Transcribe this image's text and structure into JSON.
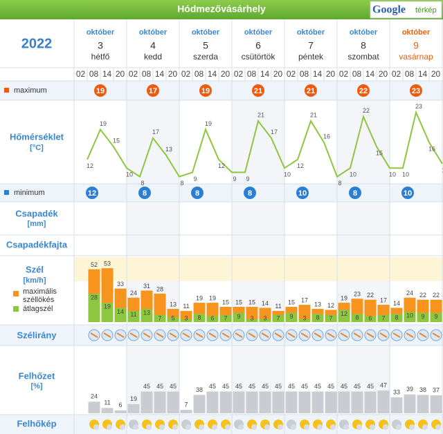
{
  "header": {
    "title": "Hódmezővásárhely",
    "logo": "Google",
    "logo_sub": "térkép",
    "year": "2022"
  },
  "days": [
    {
      "month": "október",
      "day": "3",
      "weekday": "hétfő"
    },
    {
      "month": "október",
      "day": "4",
      "weekday": "kedd"
    },
    {
      "month": "október",
      "day": "5",
      "weekday": "szerda"
    },
    {
      "month": "október",
      "day": "6",
      "weekday": "csütörtök"
    },
    {
      "month": "október",
      "day": "7",
      "weekday": "péntek"
    },
    {
      "month": "október",
      "day": "8",
      "weekday": "szombat"
    },
    {
      "month": "október",
      "day": "9",
      "weekday": "vasárnap"
    }
  ],
  "hours": [
    "02",
    "08",
    "14",
    "20"
  ],
  "labels": {
    "maximum": "maximum",
    "temperature": "Hőmérséklet",
    "temperature_unit": "[°C]",
    "minimum": "minimum",
    "precip": "Csapadék",
    "precip_unit": "[mm]",
    "precip_type": "Csapadékfajta",
    "wind": "Szél",
    "wind_unit": "[km/h]",
    "gust": "maximális széllökés",
    "avg_wind": "átlagszél",
    "wind_dir": "Szélirány",
    "cloud": "Felhőzet",
    "cloud_unit": "[%]",
    "cloud_img": "Felhőkép"
  },
  "max": [
    19,
    17,
    19,
    21,
    21,
    22,
    23
  ],
  "min": [
    12,
    8,
    8,
    8,
    10,
    8,
    10
  ],
  "temperature": {
    "values": [
      12,
      19,
      15,
      10,
      8,
      17,
      13,
      8,
      9,
      19,
      12,
      9,
      9,
      21,
      17,
      10,
      12,
      21,
      16,
      8,
      10,
      22,
      15,
      10,
      10,
      23,
      16,
      11
    ],
    "ylim": [
      6,
      26
    ],
    "color": "#8dc63f"
  },
  "wind": {
    "gust": [
      52,
      53,
      33,
      24,
      31,
      28,
      13,
      11,
      19,
      19,
      15,
      15,
      15,
      14,
      11,
      15,
      17,
      13,
      12,
      19,
      23,
      22,
      17,
      14,
      24,
      22,
      22
    ],
    "avg": [
      28,
      19,
      14,
      11,
      13,
      7,
      5,
      3,
      8,
      6,
      7,
      9,
      3,
      3,
      7,
      9,
      3,
      8,
      7,
      12,
      8,
      6,
      7,
      8,
      10,
      9,
      9
    ],
    "ylim": [
      0,
      64
    ],
    "gust_color": "#f7941d",
    "avg_color": "#8dc63f"
  },
  "cloud": {
    "values": [
      24,
      11,
      6,
      19,
      45,
      45,
      45,
      7,
      38,
      45,
      45,
      45,
      45,
      45,
      45,
      45,
      45,
      45,
      45,
      45,
      45,
      45,
      47,
      33,
      39,
      38,
      37
    ],
    "ylim": [
      0,
      100
    ],
    "color": "#c9cdd2"
  }
}
